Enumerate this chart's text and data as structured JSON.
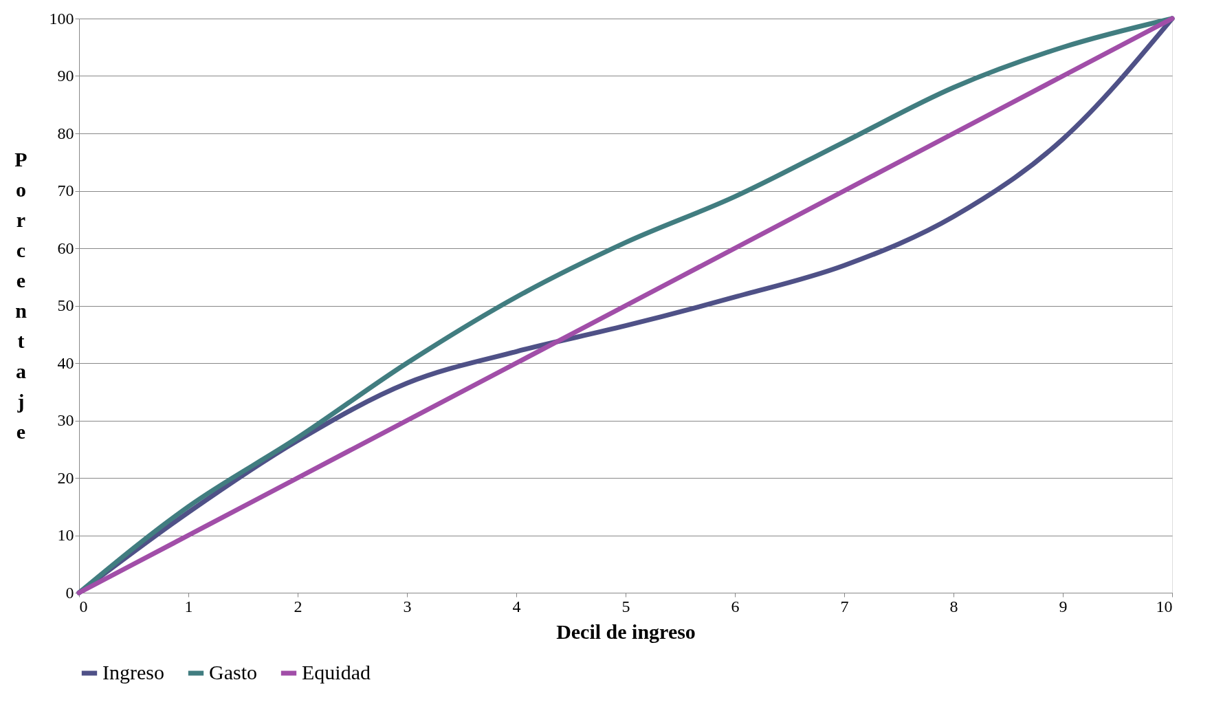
{
  "chart_data": {
    "type": "line",
    "xlabel": "Decil de ingreso",
    "ylabel": "Porcentaje",
    "x": [
      0,
      1,
      2,
      3,
      4,
      5,
      6,
      7,
      8,
      9,
      10
    ],
    "series": [
      {
        "name": "Ingreso",
        "color": "#4f5187",
        "values": [
          0,
          14,
          26.5,
          36.5,
          42,
          46.5,
          51.5,
          57,
          65.5,
          79,
          100
        ]
      },
      {
        "name": "Gasto",
        "color": "#417d80",
        "values": [
          0,
          15,
          27,
          40,
          51.5,
          61,
          69,
          78.5,
          88,
          95,
          100
        ]
      },
      {
        "name": "Equidad",
        "color": "#a14ea8",
        "values": [
          0,
          10,
          20,
          30,
          40,
          50,
          60,
          70,
          80,
          90,
          100
        ]
      }
    ],
    "xlim": [
      0,
      10
    ],
    "xticks": [
      0,
      1,
      2,
      3,
      4,
      5,
      6,
      7,
      8,
      9,
      10
    ],
    "ylim": [
      0,
      100
    ],
    "yticks": [
      0,
      10,
      20,
      30,
      40,
      50,
      60,
      70,
      80,
      90,
      100
    ],
    "grid": "y",
    "legend": "bottom",
    "marker": "none",
    "line_style": "solid"
  }
}
